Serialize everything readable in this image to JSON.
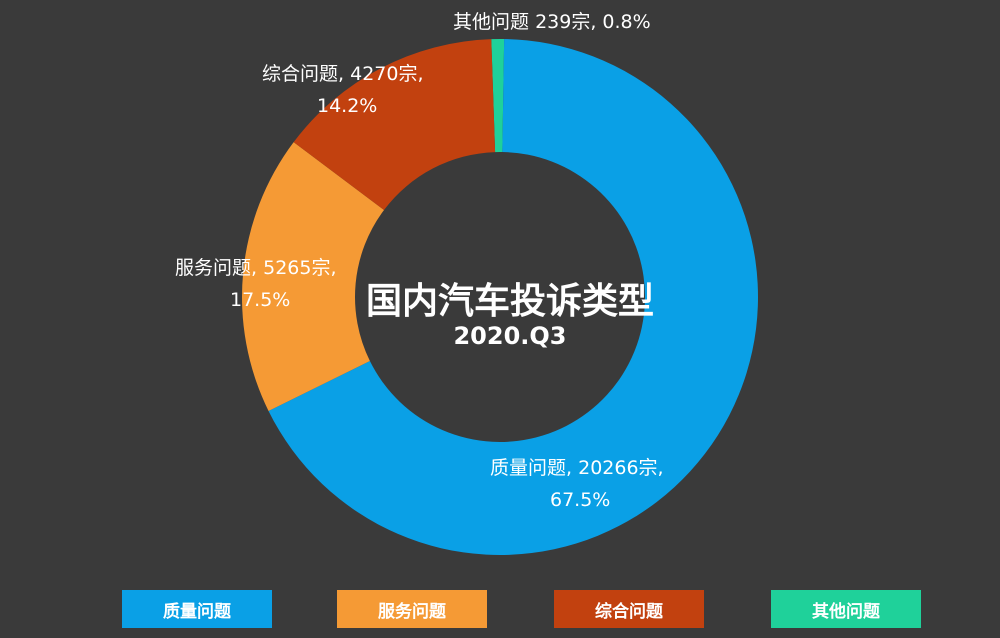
{
  "chart_data": {
    "type": "pie",
    "title": "国内汽车投诉类型",
    "subtitle": "2020.Q3",
    "slices": [
      {
        "label": "质量问题",
        "count_text": "20266宗,",
        "percent_text": "67.5%",
        "value": 20266,
        "percent": 67.5,
        "color": "#0aa0e6"
      },
      {
        "label": "服务问题",
        "count_text": "5265宗,",
        "percent_text": "17.5%",
        "value": 5265,
        "percent": 17.5,
        "color": "#f59a35"
      },
      {
        "label": "综合问题",
        "count_text": "4270宗,",
        "percent_text": "14.2%",
        "value": 4270,
        "percent": 14.2,
        "color": "#c2410f"
      },
      {
        "label": "其他问题",
        "count_text": "239宗,",
        "percent_text": "0.8%",
        "value": 239,
        "percent": 0.8,
        "color": "#1fd19a"
      }
    ],
    "legend": [
      "质量问题",
      "服务问题",
      "综合问题",
      "其他问题"
    ],
    "legend_position": "bottom",
    "donut": true
  }
}
